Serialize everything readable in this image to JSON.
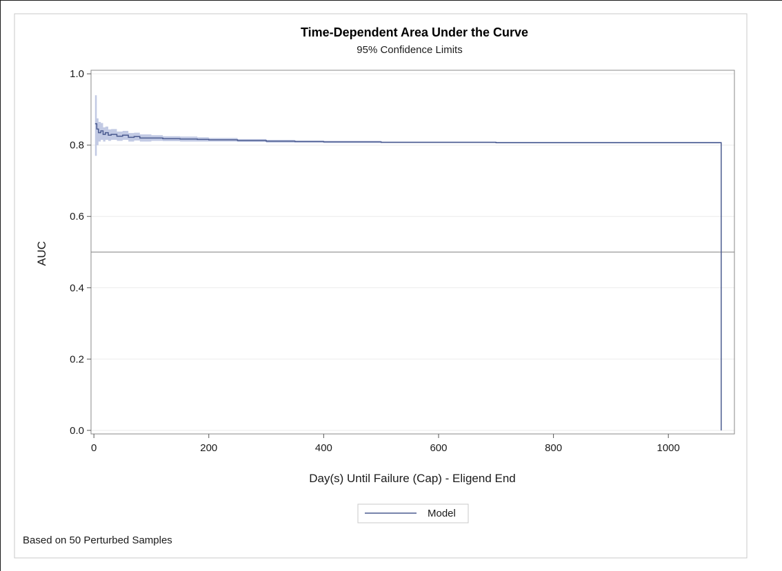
{
  "chart_data": {
    "type": "line",
    "title": "Time-Dependent Area Under the Curve",
    "subtitle": "95% Confidence Limits",
    "xlabel": "Day(s) Until Failure (Cap) - Eligend End",
    "ylabel": "AUC",
    "xlim": [
      -5,
      1115
    ],
    "ylim": [
      -0.01,
      1.01
    ],
    "xticks": [
      0,
      200,
      400,
      600,
      800,
      1000
    ],
    "xtick_labels": [
      "0",
      "200",
      "400",
      "600",
      "800",
      "1000"
    ],
    "yticks": [
      0.0,
      0.2,
      0.4,
      0.6,
      0.8,
      1.0
    ],
    "ytick_labels": [
      "0.0",
      "0.2",
      "0.4",
      "0.6",
      "0.8",
      "1.0"
    ],
    "grid": "horizontal",
    "reference_line": {
      "y": 0.5
    },
    "series": [
      {
        "name": "Model",
        "color": "#4a5a8f",
        "band_color": "#b7c1df",
        "x": [
          2,
          5,
          8,
          12,
          16,
          20,
          25,
          30,
          40,
          50,
          60,
          70,
          80,
          100,
          120,
          150,
          180,
          200,
          250,
          300,
          350,
          400,
          500,
          600,
          700,
          800,
          900,
          1000,
          1080,
          1092,
          1092
        ],
        "y": [
          0.86,
          0.845,
          0.835,
          0.84,
          0.83,
          0.835,
          0.828,
          0.83,
          0.825,
          0.828,
          0.822,
          0.824,
          0.82,
          0.82,
          0.818,
          0.817,
          0.816,
          0.815,
          0.813,
          0.811,
          0.81,
          0.809,
          0.808,
          0.808,
          0.807,
          0.807,
          0.807,
          0.807,
          0.807,
          0.807,
          0.0
        ],
        "lower": [
          0.77,
          0.8,
          0.81,
          0.815,
          0.81,
          0.815,
          0.812,
          0.815,
          0.812,
          0.815,
          0.81,
          0.813,
          0.81,
          0.812,
          0.811,
          0.81,
          0.81,
          0.81,
          0.809,
          0.807,
          0.807,
          0.806,
          0.806,
          0.806,
          0.805,
          0.805,
          0.805,
          0.805,
          0.805,
          0.805,
          0.0
        ],
        "upper": [
          0.94,
          0.875,
          0.865,
          0.862,
          0.85,
          0.852,
          0.844,
          0.845,
          0.838,
          0.84,
          0.834,
          0.835,
          0.83,
          0.828,
          0.825,
          0.824,
          0.822,
          0.82,
          0.817,
          0.815,
          0.813,
          0.812,
          0.81,
          0.81,
          0.809,
          0.809,
          0.809,
          0.809,
          0.809,
          0.809,
          0.0
        ]
      }
    ],
    "legend": {
      "position": "bottom-center",
      "entries": [
        "Model"
      ]
    },
    "footnote": "Based on 50 Perturbed Samples"
  }
}
